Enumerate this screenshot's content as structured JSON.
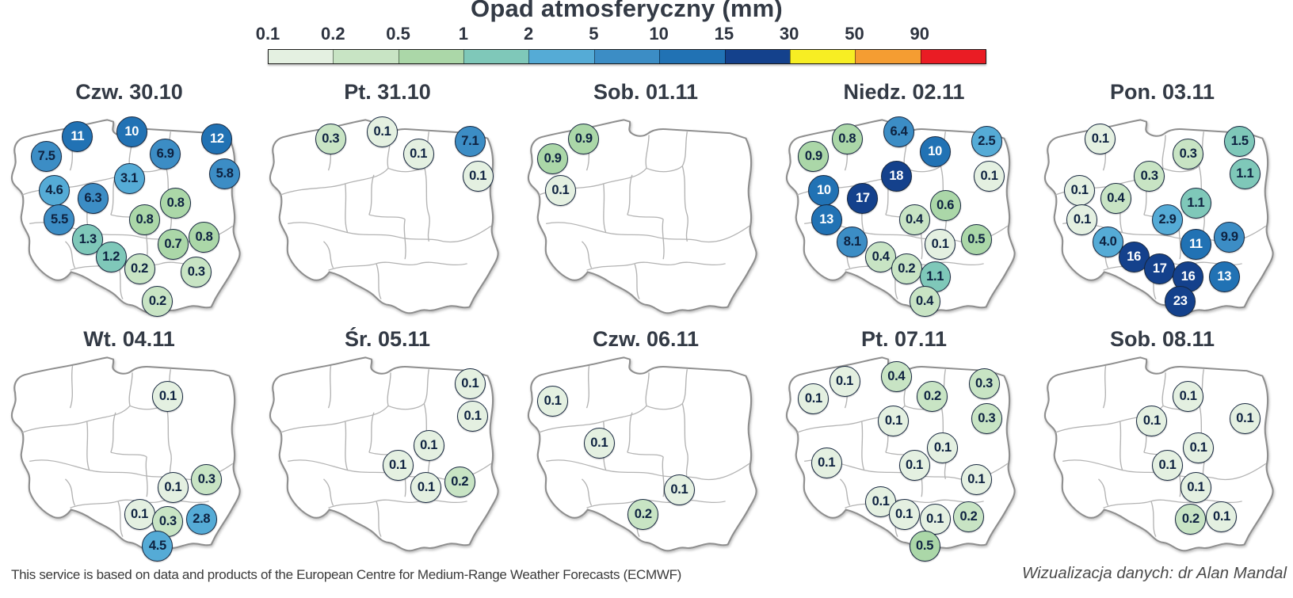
{
  "title": "Opad atmosferyczny (mm)",
  "colorbar": {
    "labels": [
      "0.1",
      "0.2",
      "0.5",
      "1",
      "2",
      "5",
      "10",
      "15",
      "30",
      "50",
      "90"
    ],
    "colors": [
      "#e4f0e1",
      "#c8e4c4",
      "#abd7a8",
      "#7fc8b9",
      "#55abd6",
      "#3c8dc5",
      "#2172b4",
      "#14418c",
      "#f7ee23",
      "#f59d32",
      "#ea1c24"
    ]
  },
  "value_text_colors": {
    "light": "#0e2240",
    "dark_bubble": "#ffffff"
  },
  "chart_data": {
    "type": "scatter",
    "title": "Opad atmosferyczny (mm)",
    "unit": "mm",
    "layout": "small-multiples map grid, 5 columns x 2 rows, Poland voivodeship map per day",
    "scale_breaks": [
      0.1,
      0.2,
      0.5,
      1,
      2,
      5,
      10,
      15,
      30,
      50,
      90
    ],
    "days": [
      {
        "label": "Czw. 30.10",
        "points": [
          {
            "x": 30,
            "y": 25,
            "v": "11"
          },
          {
            "x": 51,
            "y": 23,
            "v": "10"
          },
          {
            "x": 18,
            "y": 33,
            "v": "7.5"
          },
          {
            "x": 64,
            "y": 32,
            "v": "6.9"
          },
          {
            "x": 84,
            "y": 26,
            "v": "12"
          },
          {
            "x": 50,
            "y": 42,
            "v": "3.1"
          },
          {
            "x": 87,
            "y": 40,
            "v": "5.8"
          },
          {
            "x": 21,
            "y": 47,
            "v": "4.6"
          },
          {
            "x": 36,
            "y": 50,
            "v": "6.3"
          },
          {
            "x": 68,
            "y": 52,
            "v": "0.8"
          },
          {
            "x": 56,
            "y": 59,
            "v": "0.8"
          },
          {
            "x": 23,
            "y": 59,
            "v": "5.5"
          },
          {
            "x": 79,
            "y": 66,
            "v": "0.8"
          },
          {
            "x": 67,
            "y": 69,
            "v": "0.7"
          },
          {
            "x": 34,
            "y": 67,
            "v": "1.3"
          },
          {
            "x": 43,
            "y": 74,
            "v": "1.2"
          },
          {
            "x": 54,
            "y": 79,
            "v": "0.2"
          },
          {
            "x": 76,
            "y": 80,
            "v": "0.3"
          },
          {
            "x": 61,
            "y": 92,
            "v": "0.2"
          }
        ]
      },
      {
        "label": "Pt. 31.10",
        "points": [
          {
            "x": 28,
            "y": 26,
            "v": "0.3"
          },
          {
            "x": 48,
            "y": 23,
            "v": "0.1"
          },
          {
            "x": 62,
            "y": 32,
            "v": "0.1"
          },
          {
            "x": 82,
            "y": 27,
            "v": "7.1"
          },
          {
            "x": 85,
            "y": 41,
            "v": "0.1"
          }
        ]
      },
      {
        "label": "Sob. 01.11",
        "points": [
          {
            "x": 26,
            "y": 26,
            "v": "0.9"
          },
          {
            "x": 14,
            "y": 34,
            "v": "0.9"
          },
          {
            "x": 17,
            "y": 47,
            "v": "0.1"
          }
        ]
      },
      {
        "label": "Niedz. 02.11",
        "points": [
          {
            "x": 28,
            "y": 26,
            "v": "0.8"
          },
          {
            "x": 48,
            "y": 23,
            "v": "6.4"
          },
          {
            "x": 62,
            "y": 31,
            "v": "10"
          },
          {
            "x": 82,
            "y": 27,
            "v": "2.5"
          },
          {
            "x": 15,
            "y": 33,
            "v": "0.9"
          },
          {
            "x": 83,
            "y": 41,
            "v": "0.1"
          },
          {
            "x": 47,
            "y": 41,
            "v": "18"
          },
          {
            "x": 19,
            "y": 47,
            "v": "10"
          },
          {
            "x": 34,
            "y": 50,
            "v": "17"
          },
          {
            "x": 66,
            "y": 53,
            "v": "0.6"
          },
          {
            "x": 20,
            "y": 59,
            "v": "13"
          },
          {
            "x": 54,
            "y": 59,
            "v": "0.4"
          },
          {
            "x": 78,
            "y": 67,
            "v": "0.5"
          },
          {
            "x": 64,
            "y": 69,
            "v": "0.1"
          },
          {
            "x": 30,
            "y": 68,
            "v": "8.1"
          },
          {
            "x": 41,
            "y": 74,
            "v": "0.4"
          },
          {
            "x": 51,
            "y": 79,
            "v": "0.2"
          },
          {
            "x": 62,
            "y": 82,
            "v": "1.1"
          },
          {
            "x": 58,
            "y": 92,
            "v": "0.4"
          }
        ]
      },
      {
        "label": "Pon. 03.11",
        "points": [
          {
            "x": 26,
            "y": 26,
            "v": "0.1"
          },
          {
            "x": 60,
            "y": 32,
            "v": "0.3"
          },
          {
            "x": 80,
            "y": 27,
            "v": "1.5"
          },
          {
            "x": 82,
            "y": 40,
            "v": "1.1"
          },
          {
            "x": 45,
            "y": 41,
            "v": "0.3"
          },
          {
            "x": 18,
            "y": 47,
            "v": "0.1"
          },
          {
            "x": 32,
            "y": 50,
            "v": "0.4"
          },
          {
            "x": 63,
            "y": 52,
            "v": "1.1"
          },
          {
            "x": 19,
            "y": 59,
            "v": "0.1"
          },
          {
            "x": 52,
            "y": 59,
            "v": "2.9"
          },
          {
            "x": 76,
            "y": 66,
            "v": "9.9"
          },
          {
            "x": 63,
            "y": 69,
            "v": "11"
          },
          {
            "x": 29,
            "y": 68,
            "v": "4.0"
          },
          {
            "x": 39,
            "y": 74,
            "v": "16"
          },
          {
            "x": 49,
            "y": 79,
            "v": "17"
          },
          {
            "x": 60,
            "y": 82,
            "v": "16"
          },
          {
            "x": 74,
            "y": 82,
            "v": "13"
          },
          {
            "x": 57,
            "y": 92,
            "v": "23"
          }
        ]
      },
      {
        "label": "Wt. 04.11",
        "points": [
          {
            "x": 65,
            "y": 34,
            "v": "0.1"
          },
          {
            "x": 67,
            "y": 71,
            "v": "0.1"
          },
          {
            "x": 80,
            "y": 68,
            "v": "0.3"
          },
          {
            "x": 54,
            "y": 82,
            "v": "0.1"
          },
          {
            "x": 65,
            "y": 85,
            "v": "0.3"
          },
          {
            "x": 78,
            "y": 84,
            "v": "2.8"
          },
          {
            "x": 61,
            "y": 95,
            "v": "4.5"
          }
        ]
      },
      {
        "label": "Śr. 05.11",
        "points": [
          {
            "x": 82,
            "y": 29,
            "v": "0.1"
          },
          {
            "x": 83,
            "y": 42,
            "v": "0.1"
          },
          {
            "x": 66,
            "y": 54,
            "v": "0.1"
          },
          {
            "x": 54,
            "y": 62,
            "v": "0.1"
          },
          {
            "x": 65,
            "y": 71,
            "v": "0.1"
          },
          {
            "x": 78,
            "y": 69,
            "v": "0.2"
          }
        ]
      },
      {
        "label": "Czw. 06.11",
        "points": [
          {
            "x": 14,
            "y": 36,
            "v": "0.1"
          },
          {
            "x": 32,
            "y": 53,
            "v": "0.1"
          },
          {
            "x": 63,
            "y": 72,
            "v": "0.1"
          },
          {
            "x": 49,
            "y": 82,
            "v": "0.2"
          }
        ]
      },
      {
        "label": "Pt. 07.11",
        "points": [
          {
            "x": 27,
            "y": 28,
            "v": "0.1"
          },
          {
            "x": 47,
            "y": 26,
            "v": "0.4"
          },
          {
            "x": 61,
            "y": 34,
            "v": "0.2"
          },
          {
            "x": 81,
            "y": 29,
            "v": "0.3"
          },
          {
            "x": 15,
            "y": 35,
            "v": "0.1"
          },
          {
            "x": 82,
            "y": 43,
            "v": "0.3"
          },
          {
            "x": 46,
            "y": 44,
            "v": "0.1"
          },
          {
            "x": 65,
            "y": 55,
            "v": "0.1"
          },
          {
            "x": 20,
            "y": 61,
            "v": "0.1"
          },
          {
            "x": 54,
            "y": 62,
            "v": "0.1"
          },
          {
            "x": 78,
            "y": 68,
            "v": "0.1"
          },
          {
            "x": 41,
            "y": 77,
            "v": "0.1"
          },
          {
            "x": 50,
            "y": 82,
            "v": "0.1"
          },
          {
            "x": 62,
            "y": 84,
            "v": "0.1"
          },
          {
            "x": 75,
            "y": 83,
            "v": "0.2"
          },
          {
            "x": 58,
            "y": 95,
            "v": "0.5"
          }
        ]
      },
      {
        "label": "Sob. 08.11",
        "points": [
          {
            "x": 60,
            "y": 34,
            "v": "0.1"
          },
          {
            "x": 46,
            "y": 44,
            "v": "0.1"
          },
          {
            "x": 82,
            "y": 43,
            "v": "0.1"
          },
          {
            "x": 64,
            "y": 55,
            "v": "0.1"
          },
          {
            "x": 52,
            "y": 62,
            "v": "0.1"
          },
          {
            "x": 63,
            "y": 71,
            "v": "0.1"
          },
          {
            "x": 61,
            "y": 84,
            "v": "0.2"
          },
          {
            "x": 73,
            "y": 83,
            "v": "0.1"
          }
        ]
      }
    ]
  },
  "footer": {
    "left": "This service is based on data and products of the European Centre for Medium-Range Weather Forecasts (ECMWF)",
    "right": "Wizualizacja danych: dr Alan Mandal"
  }
}
